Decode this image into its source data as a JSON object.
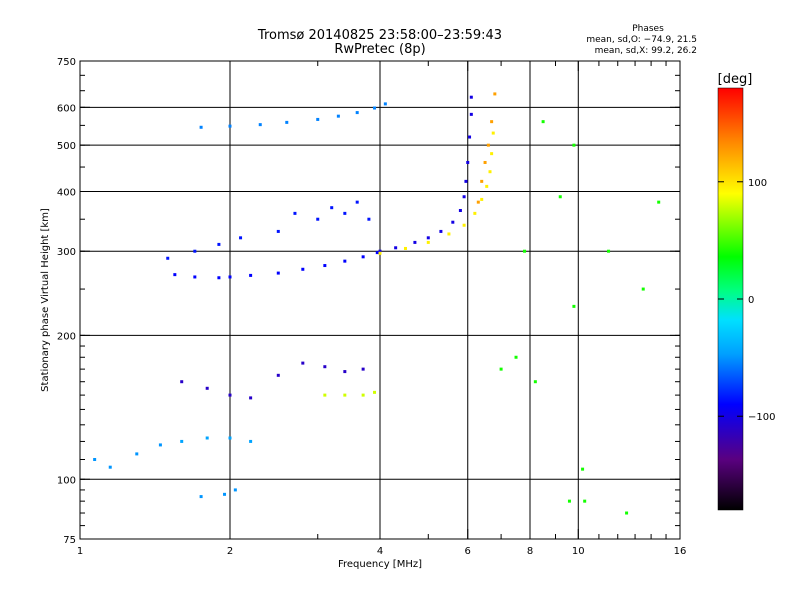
{
  "header": {
    "title_line1": "Tromsø 20140825 23:58:00–23:59:43",
    "title_line2": "RwPretec (8p)",
    "phases_label": "Phases",
    "stats_o": "mean, sd,O: −74.9, 21.5",
    "stats_x": "mean, sd,X:  99.2, 26.2"
  },
  "chart_data": {
    "type": "scatter",
    "xlabel": "Frequency [MHz]",
    "ylabel": "Stationary phase Virtual Height [km]",
    "xscale": "log",
    "yscale": "log",
    "xlim": [
      1,
      16
    ],
    "ylim": [
      75,
      750
    ],
    "x_ticks": [
      1,
      2,
      4,
      6,
      8,
      10,
      16
    ],
    "x_tick_labels": [
      "1",
      "2",
      "4",
      "6",
      "8",
      "10",
      "16"
    ],
    "y_ticks": [
      75,
      100,
      200,
      300,
      400,
      500,
      600,
      750
    ],
    "y_tick_labels": [
      "75",
      "100",
      "200",
      "300",
      "400",
      "500",
      "600",
      "750"
    ],
    "grid_x": [
      2,
      4,
      6,
      8,
      10
    ],
    "grid_y": [
      100,
      200,
      300,
      400,
      500,
      600
    ],
    "colorbar": {
      "label": "[deg]",
      "range": [
        -180,
        180
      ],
      "ticks": [
        100,
        0,
        -100
      ],
      "tick_labels": [
        "100",
        "0",
        "−100"
      ]
    },
    "series": [
      {
        "points": [
          [
            1.55,
            268
          ],
          [
            1.7,
            265
          ],
          [
            1.9,
            264
          ],
          [
            2.0,
            265
          ],
          [
            2.2,
            267
          ],
          [
            2.5,
            270
          ],
          [
            2.8,
            275
          ],
          [
            3.1,
            280
          ],
          [
            3.4,
            286
          ],
          [
            3.7,
            292
          ],
          [
            3.95,
            298
          ]
        ],
        "phase": -90
      },
      {
        "points": [
          [
            4.0,
            300
          ],
          [
            4.3,
            305
          ],
          [
            4.7,
            313
          ],
          [
            5.0,
            320
          ],
          [
            5.3,
            330
          ],
          [
            5.6,
            345
          ],
          [
            5.8,
            365
          ],
          [
            5.9,
            390
          ],
          [
            5.95,
            420
          ],
          [
            6.0,
            460
          ],
          [
            6.05,
            520
          ],
          [
            6.1,
            580
          ],
          [
            6.1,
            630
          ]
        ],
        "phase": -100
      },
      {
        "points": [
          [
            4.0,
            297
          ],
          [
            4.5,
            304
          ],
          [
            5.0,
            313
          ],
          [
            5.5,
            326
          ],
          [
            5.9,
            340
          ],
          [
            6.2,
            360
          ],
          [
            6.4,
            385
          ],
          [
            6.55,
            410
          ],
          [
            6.65,
            440
          ],
          [
            6.7,
            480
          ],
          [
            6.75,
            530
          ]
        ],
        "phase": 95
      },
      {
        "points": [
          [
            6.3,
            380
          ],
          [
            6.4,
            420
          ],
          [
            6.5,
            460
          ],
          [
            6.6,
            500
          ],
          [
            6.7,
            560
          ],
          [
            6.8,
            640
          ]
        ],
        "phase": 125
      },
      {
        "points": [
          [
            1.75,
            545
          ],
          [
            2.0,
            548
          ],
          [
            2.3,
            552
          ],
          [
            2.6,
            558
          ],
          [
            3.0,
            566
          ],
          [
            3.3,
            575
          ],
          [
            3.6,
            585
          ],
          [
            3.9,
            598
          ],
          [
            4.1,
            610
          ]
        ],
        "phase": -55
      },
      {
        "points": [
          [
            1.5,
            290
          ],
          [
            1.7,
            300
          ],
          [
            1.9,
            310
          ],
          [
            2.1,
            320
          ],
          [
            2.5,
            330
          ],
          [
            2.7,
            360
          ],
          [
            3.0,
            350
          ],
          [
            3.2,
            370
          ],
          [
            3.4,
            360
          ],
          [
            3.6,
            380
          ],
          [
            3.8,
            350
          ]
        ],
        "phase": -85
      },
      {
        "points": [
          [
            1.6,
            160
          ],
          [
            1.8,
            155
          ],
          [
            2.0,
            150
          ],
          [
            2.2,
            148
          ],
          [
            2.5,
            165
          ],
          [
            2.8,
            175
          ],
          [
            3.1,
            172
          ],
          [
            3.4,
            168
          ],
          [
            3.7,
            170
          ]
        ],
        "phase": -110
      },
      {
        "points": [
          [
            3.1,
            150
          ],
          [
            3.4,
            150
          ],
          [
            3.7,
            150
          ],
          [
            3.9,
            152
          ]
        ],
        "phase": 80
      },
      {
        "points": [
          [
            1.6,
            120
          ],
          [
            1.8,
            122
          ],
          [
            2.0,
            122
          ],
          [
            2.2,
            120
          ]
        ],
        "phase": -45
      },
      {
        "points": [
          [
            1.07,
            110
          ],
          [
            1.15,
            106
          ],
          [
            1.3,
            113
          ],
          [
            1.45,
            118
          ],
          [
            1.75,
            92
          ],
          [
            1.95,
            93
          ],
          [
            2.05,
            95
          ]
        ],
        "phase": -50
      },
      {
        "points": [
          [
            7.5,
            180
          ],
          [
            7.8,
            300
          ],
          [
            8.5,
            560
          ],
          [
            9.2,
            390
          ],
          [
            9.8,
            500
          ],
          [
            9.8,
            230
          ],
          [
            10.2,
            105
          ],
          [
            11.5,
            300
          ],
          [
            12.5,
            85
          ],
          [
            13.5,
            250
          ],
          [
            14.5,
            380
          ],
          [
            7.0,
            170
          ],
          [
            8.2,
            160
          ],
          [
            9.6,
            90
          ],
          [
            10.3,
            90
          ]
        ],
        "phase": 40
      }
    ]
  }
}
